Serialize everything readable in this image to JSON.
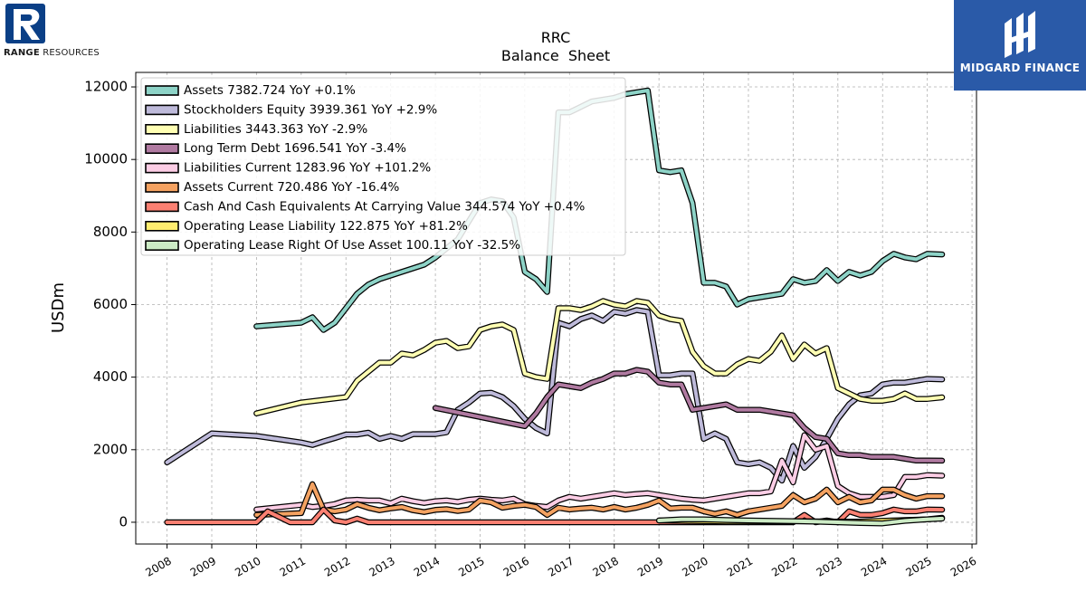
{
  "brands": {
    "left": {
      "strong": "RANGE",
      "rest": " RESOURCES",
      "icon": "range-r-logo-icon",
      "color": "#0a3f86"
    },
    "right": {
      "text": "MIDGARD FINANCE",
      "icon": "midgard-logo-icon",
      "color": "#2a5aa8"
    }
  },
  "chart_data": {
    "type": "line",
    "title": "RRC",
    "subtitle": "Balance  Sheet",
    "xlabel": "",
    "ylabel": "USDm",
    "xlim": [
      2007.3,
      2026.1
    ],
    "ylim": [
      -600,
      12400
    ],
    "x_ticks": [
      2008,
      2009,
      2010,
      2011,
      2012,
      2013,
      2014,
      2015,
      2016,
      2017,
      2018,
      2019,
      2020,
      2021,
      2022,
      2023,
      2024,
      2025,
      2026
    ],
    "y_ticks": [
      0,
      2000,
      4000,
      6000,
      8000,
      10000,
      12000
    ],
    "grid": true,
    "legend_position": "top-left",
    "series": [
      {
        "name": "Assets",
        "label": "Assets  7382.724 YoY +0.1%",
        "color": "#8dd3c7",
        "x": [
          2010.0,
          2011.0,
          2011.25,
          2011.5,
          2011.75,
          2012.0,
          2012.25,
          2012.5,
          2012.75,
          2013.0,
          2013.25,
          2013.5,
          2013.75,
          2014.0,
          2014.25,
          2014.5,
          2014.75,
          2015.0,
          2015.25,
          2015.5,
          2015.75,
          2016.0,
          2016.25,
          2016.5,
          2016.75,
          2017.0,
          2017.25,
          2017.5,
          2017.75,
          2018.0,
          2018.25,
          2018.5,
          2018.75,
          2019.0,
          2019.25,
          2019.5,
          2019.75,
          2020.0,
          2020.25,
          2020.5,
          2020.75,
          2021.0,
          2021.25,
          2021.5,
          2021.75,
          2022.0,
          2022.25,
          2022.5,
          2022.75,
          2023.0,
          2023.25,
          2023.5,
          2023.75,
          2024.0,
          2024.25,
          2024.5,
          2024.75,
          2025.0,
          2025.33
        ],
        "y": [
          5400,
          5500,
          5650,
          5300,
          5500,
          5900,
          6300,
          6550,
          6700,
          6800,
          6900,
          7000,
          7100,
          7300,
          7550,
          7800,
          8300,
          8800,
          8900,
          8850,
          8400,
          6900,
          6700,
          6350,
          11300,
          11300,
          11450,
          11600,
          11650,
          11700,
          11800,
          11850,
          11900,
          9700,
          9650,
          9700,
          8800,
          6600,
          6600,
          6500,
          6000,
          6150,
          6200,
          6250,
          6300,
          6700,
          6600,
          6650,
          6950,
          6650,
          6900,
          6800,
          6900,
          7200,
          7400,
          7300,
          7250,
          7400,
          7383
        ]
      },
      {
        "name": "Stockholders Equity",
        "label": "Stockholders Equity  3939.361 YoY +2.9%",
        "color": "#bebada",
        "x": [
          2008.0,
          2009.0,
          2010.0,
          2011.0,
          2011.25,
          2011.5,
          2011.75,
          2012.0,
          2012.25,
          2012.5,
          2012.75,
          2013.0,
          2013.25,
          2013.5,
          2013.75,
          2014.0,
          2014.25,
          2014.5,
          2014.75,
          2015.0,
          2015.25,
          2015.5,
          2015.75,
          2016.0,
          2016.25,
          2016.5,
          2016.75,
          2017.0,
          2017.25,
          2017.5,
          2017.75,
          2018.0,
          2018.25,
          2018.5,
          2018.75,
          2019.0,
          2019.25,
          2019.5,
          2019.75,
          2020.0,
          2020.25,
          2020.5,
          2020.75,
          2021.0,
          2021.25,
          2021.5,
          2021.75,
          2022.0,
          2022.25,
          2022.5,
          2022.75,
          2023.0,
          2023.25,
          2023.5,
          2023.75,
          2024.0,
          2024.25,
          2024.5,
          2024.75,
          2025.0,
          2025.33
        ],
        "y": [
          1650,
          2450,
          2380,
          2200,
          2130,
          2230,
          2320,
          2420,
          2420,
          2470,
          2300,
          2380,
          2300,
          2430,
          2430,
          2430,
          2480,
          3100,
          3300,
          3550,
          3570,
          3450,
          3200,
          2850,
          2600,
          2450,
          5500,
          5400,
          5600,
          5700,
          5550,
          5800,
          5750,
          5850,
          5800,
          4050,
          4050,
          4100,
          4100,
          2300,
          2450,
          2300,
          1650,
          1600,
          1650,
          1500,
          1150,
          2100,
          1500,
          1800,
          2300,
          2850,
          3250,
          3500,
          3550,
          3800,
          3850,
          3850,
          3900,
          3950,
          3939
        ]
      },
      {
        "name": "Liabilities",
        "label": "Liabilities  3443.363 YoY -2.9%",
        "color": "#ffffb3",
        "x": [
          2010.0,
          2011.0,
          2012.0,
          2012.25,
          2012.5,
          2012.75,
          2013.0,
          2013.25,
          2013.5,
          2013.75,
          2014.0,
          2014.25,
          2014.5,
          2014.75,
          2015.0,
          2015.25,
          2015.5,
          2015.75,
          2016.0,
          2016.25,
          2016.5,
          2016.75,
          2017.0,
          2017.25,
          2017.5,
          2017.75,
          2018.0,
          2018.25,
          2018.5,
          2018.75,
          2019.0,
          2019.25,
          2019.5,
          2019.75,
          2020.0,
          2020.25,
          2020.5,
          2020.75,
          2021.0,
          2021.25,
          2021.5,
          2021.75,
          2022.0,
          2022.25,
          2022.5,
          2022.75,
          2023.0,
          2023.25,
          2023.5,
          2023.75,
          2024.0,
          2024.25,
          2024.5,
          2024.75,
          2025.0,
          2025.33
        ],
        "y": [
          3000,
          3300,
          3450,
          3900,
          4150,
          4400,
          4400,
          4650,
          4600,
          4750,
          4950,
          5000,
          4800,
          4850,
          5300,
          5400,
          5450,
          5300,
          4100,
          4000,
          3950,
          5900,
          5900,
          5850,
          5950,
          6100,
          6000,
          5950,
          6100,
          6050,
          5700,
          5600,
          5550,
          4700,
          4300,
          4100,
          4100,
          4350,
          4500,
          4450,
          4700,
          5150,
          4500,
          4900,
          4650,
          4800,
          3700,
          3550,
          3400,
          3350,
          3350,
          3400,
          3550,
          3400,
          3400,
          3443
        ]
      },
      {
        "name": "Long Term Debt",
        "label": "Long Term Debt  1696.541 YoY -3.4%",
        "color": "#b07aa1",
        "x": [
          2014.0,
          2015.0,
          2016.0,
          2016.25,
          2016.5,
          2016.75,
          2017.0,
          2017.25,
          2017.5,
          2017.75,
          2018.0,
          2018.25,
          2018.5,
          2018.75,
          2019.0,
          2019.25,
          2019.5,
          2019.75,
          2020.0,
          2020.25,
          2020.5,
          2020.75,
          2021.0,
          2021.25,
          2021.5,
          2021.75,
          2022.0,
          2022.25,
          2022.5,
          2022.75,
          2023.0,
          2023.25,
          2023.5,
          2023.75,
          2024.0,
          2024.25,
          2024.5,
          2024.75,
          2025.0,
          2025.33
        ],
        "y": [
          3150,
          2900,
          2650,
          3000,
          3450,
          3800,
          3750,
          3700,
          3850,
          3950,
          4100,
          4100,
          4200,
          4150,
          3850,
          3800,
          3800,
          3100,
          3150,
          3200,
          3250,
          3100,
          3100,
          3100,
          3050,
          3000,
          2950,
          2600,
          2350,
          2300,
          1900,
          1850,
          1850,
          1800,
          1800,
          1800,
          1750,
          1700,
          1700,
          1697
        ]
      },
      {
        "name": "Liabilities Current",
        "label": "Liabilities Current  1283.96 YoY +101.2%",
        "color": "#fccde5",
        "x": [
          2010.0,
          2011.0,
          2011.25,
          2011.5,
          2011.75,
          2012.0,
          2012.25,
          2012.5,
          2012.75,
          2013.0,
          2013.25,
          2013.5,
          2013.75,
          2014.0,
          2014.25,
          2014.5,
          2014.75,
          2015.0,
          2015.25,
          2015.5,
          2015.75,
          2016.0,
          2016.25,
          2016.5,
          2016.75,
          2017.0,
          2017.25,
          2017.5,
          2017.75,
          2018.0,
          2018.25,
          2018.5,
          2018.75,
          2019.0,
          2019.25,
          2019.5,
          2019.75,
          2020.0,
          2020.25,
          2020.5,
          2020.75,
          2021.0,
          2021.25,
          2021.5,
          2021.75,
          2022.0,
          2022.25,
          2022.5,
          2022.75,
          2023.0,
          2023.25,
          2023.5,
          2023.75,
          2024.0,
          2024.25,
          2024.5,
          2024.75,
          2025.0,
          2025.33
        ],
        "y": [
          350,
          480,
          420,
          450,
          500,
          600,
          620,
          600,
          600,
          520,
          650,
          580,
          530,
          580,
          600,
          560,
          620,
          650,
          620,
          600,
          650,
          500,
          450,
          420,
          600,
          700,
          650,
          700,
          750,
          800,
          750,
          780,
          800,
          750,
          700,
          650,
          620,
          600,
          650,
          700,
          750,
          800,
          800,
          850,
          1700,
          1100,
          2400,
          2000,
          2100,
          1000,
          800,
          700,
          700,
          700,
          750,
          1250,
          1250,
          1300,
          1284
        ]
      },
      {
        "name": "Assets Current",
        "label": "Assets Current  720.486 YoY -16.4%",
        "color": "#f4a261",
        "x": [
          2010.0,
          2011.0,
          2011.25,
          2011.5,
          2011.75,
          2012.0,
          2012.25,
          2012.5,
          2012.75,
          2013.0,
          2013.25,
          2013.5,
          2013.75,
          2014.0,
          2014.25,
          2014.5,
          2014.75,
          2015.0,
          2015.25,
          2015.5,
          2015.75,
          2016.0,
          2016.25,
          2016.5,
          2016.75,
          2017.0,
          2017.25,
          2017.5,
          2017.75,
          2018.0,
          2018.25,
          2018.5,
          2018.75,
          2019.0,
          2019.25,
          2019.5,
          2019.75,
          2020.0,
          2020.25,
          2020.5,
          2020.75,
          2021.0,
          2021.25,
          2021.5,
          2021.75,
          2022.0,
          2022.25,
          2022.5,
          2022.75,
          2023.0,
          2023.25,
          2023.5,
          2023.75,
          2024.0,
          2024.25,
          2024.5,
          2024.75,
          2025.0,
          2025.33
        ],
        "y": [
          200,
          250,
          1050,
          350,
          300,
          350,
          500,
          400,
          330,
          380,
          420,
          330,
          280,
          340,
          360,
          310,
          350,
          600,
          550,
          400,
          450,
          480,
          420,
          200,
          400,
          350,
          380,
          400,
          350,
          420,
          350,
          400,
          480,
          600,
          380,
          400,
          400,
          300,
          230,
          300,
          200,
          300,
          350,
          400,
          450,
          750,
          550,
          650,
          900,
          550,
          700,
          550,
          600,
          900,
          900,
          750,
          650,
          720,
          720
        ]
      },
      {
        "name": "Cash And Cash Equivalents At Carrying Value",
        "label": "Cash And Cash Equivalents At Carrying Value  344.574 YoY +0.4%",
        "color": "#fb8072",
        "x": [
          2008.0,
          2010.0,
          2010.25,
          2010.5,
          2010.75,
          2011.0,
          2011.25,
          2011.5,
          2011.75,
          2012.0,
          2012.25,
          2012.5,
          2013.0,
          2016.0,
          2019.0,
          2020.0,
          2021.0,
          2022.0,
          2022.25,
          2022.5,
          2022.75,
          2023.0,
          2023.25,
          2023.5,
          2023.75,
          2024.0,
          2024.25,
          2024.5,
          2024.75,
          2025.0,
          2025.33
        ],
        "y": [
          0,
          0,
          300,
          150,
          0,
          0,
          0,
          350,
          50,
          0,
          100,
          0,
          0,
          0,
          0,
          0,
          0,
          0,
          200,
          0,
          50,
          0,
          300,
          200,
          200,
          250,
          350,
          300,
          300,
          350,
          345
        ]
      },
      {
        "name": "Operating Lease Liability",
        "label": "Operating Lease Liability  122.875 YoY +81.2%",
        "color": "#ffed6f",
        "x": [
          2019.0,
          2019.5,
          2020.0,
          2020.5,
          2021.0,
          2021.5,
          2022.0,
          2022.5,
          2023.0,
          2023.5,
          2024.0,
          2024.5,
          2025.0,
          2025.33
        ],
        "y": [
          50,
          40,
          30,
          20,
          20,
          20,
          30,
          25,
          20,
          20,
          40,
          60,
          80,
          123
        ]
      },
      {
        "name": "Operating Lease Right Of Use Asset",
        "label": "Operating Lease Right Of Use Asset  100.11 YoY -32.5%",
        "color": "#ccebc5",
        "x": [
          2019.0,
          2019.5,
          2020.0,
          2020.5,
          2021.0,
          2021.5,
          2022.0,
          2022.5,
          2023.0,
          2023.5,
          2024.0,
          2024.5,
          2025.0,
          2025.33
        ],
        "y": [
          50,
          80,
          80,
          60,
          50,
          40,
          30,
          20,
          0,
          -20,
          -30,
          40,
          80,
          100
        ]
      }
    ]
  }
}
